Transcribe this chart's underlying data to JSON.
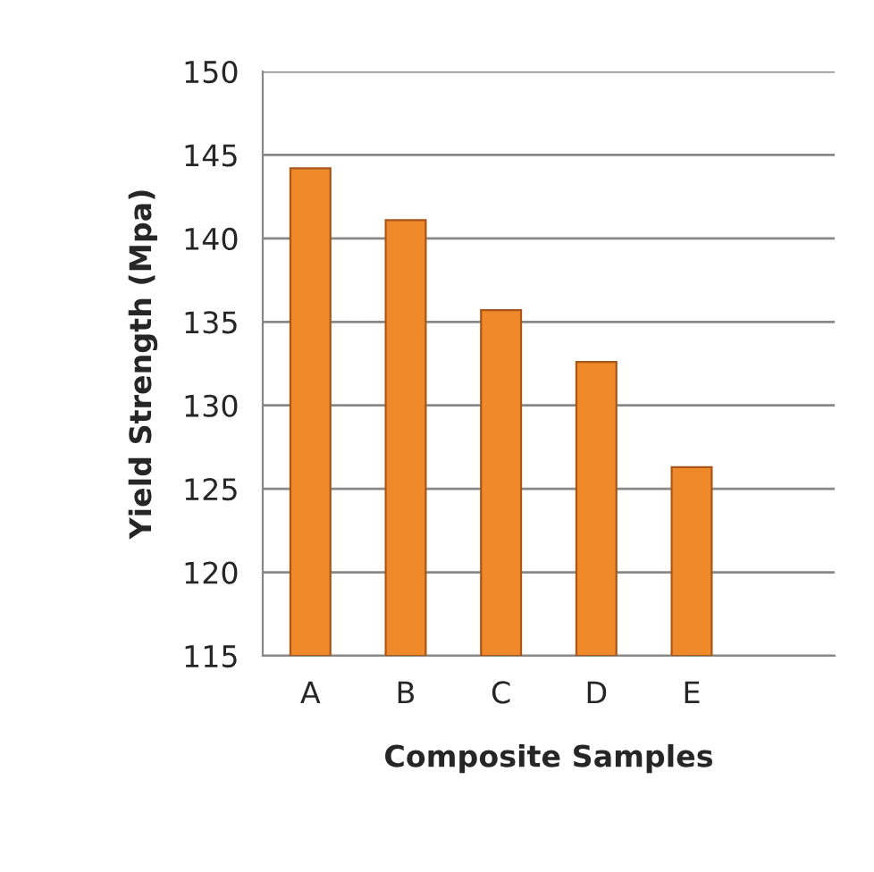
{
  "chart_data": {
    "type": "bar",
    "xlabel": "Composite Samples",
    "ylabel": "Yield Strength (Mpa)",
    "categories": [
      "A",
      "B",
      "C",
      "D",
      "E",
      null
    ],
    "values": [
      144.2,
      141.1,
      135.7,
      132.6,
      126.3,
      null
    ],
    "color": "#f0892a",
    "ylim": [
      115,
      150
    ],
    "yticks": [
      115,
      120,
      125,
      130,
      135,
      140,
      145,
      150
    ],
    "grid": "y",
    "legend": false
  }
}
